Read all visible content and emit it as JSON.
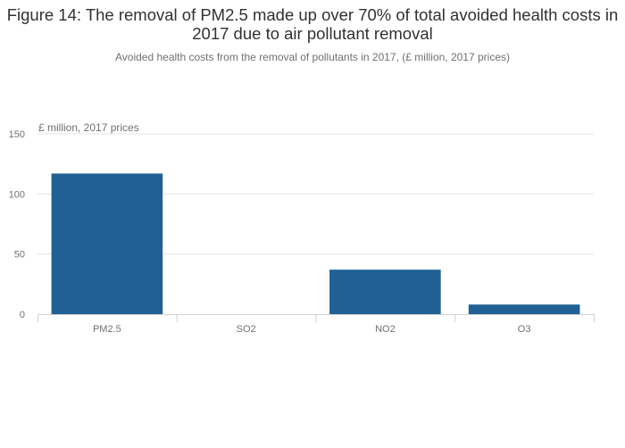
{
  "chart_data": {
    "type": "bar",
    "title": "Figure 14: The removal of PM2.5 made up over 70% of total avoided health costs in 2017 due to air pollutant removal",
    "subtitle": "Avoided health costs from the removal of pollutants in 2017, (£ million, 2017 prices)",
    "ylabel": "£ million, 2017 prices",
    "categories": [
      "PM2.5",
      "SO2",
      "NO2",
      "O3"
    ],
    "values": [
      117,
      0,
      37,
      8
    ],
    "ylim": [
      0,
      150
    ],
    "yticks": [
      0,
      50,
      100,
      150
    ],
    "colors": {
      "bar": "#206095",
      "grid": "#e6e6e6",
      "axis": "#d0d0d0"
    },
    "grid": true,
    "legend": false
  }
}
